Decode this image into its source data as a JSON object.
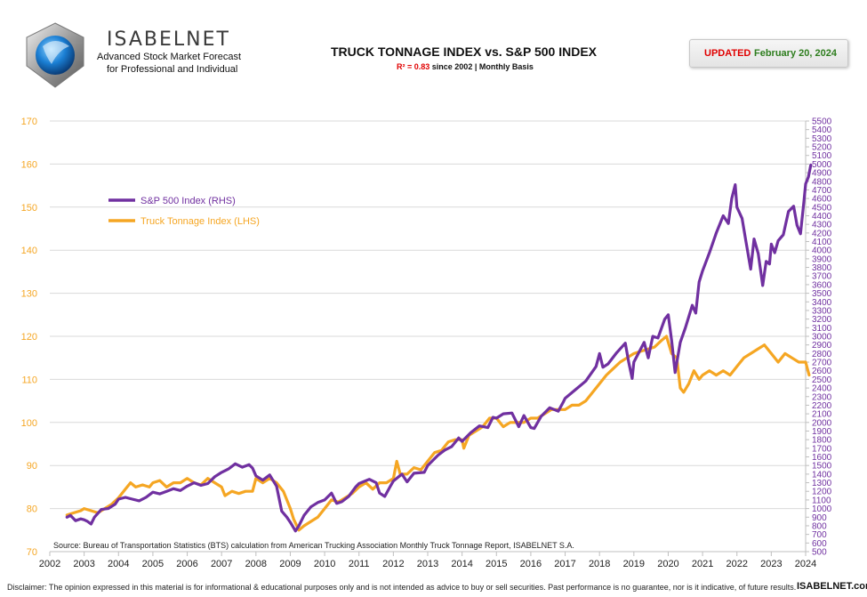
{
  "brand": {
    "name": "ISABELNET",
    "tagline_1": "Advanced Stock Market Forecast",
    "tagline_2": "for Professional and Individual"
  },
  "header": {
    "title": "TRUCK TONNAGE  INDEX vs. S&P 500 INDEX",
    "subtitle_r2": "R² = 0.83",
    "subtitle_rest": " since 2002 | Monthly Basis",
    "updated_label": "UPDATED",
    "updated_date": "February 20, 2024"
  },
  "footer": {
    "disclaimer": "Disclaimer: The opinion expressed in this material is for informational & educational purposes only and is not intended as advice to buy or sell securities. Past performance is no guarantee, nor is it indicative, of future results.",
    "site": "ISABELNET.com"
  },
  "colors": {
    "sp500": "#7030a0",
    "truck": "#f5a623",
    "left_axis_text": "#f5a623",
    "right_axis_text": "#7030a0",
    "grid": "#d9d9d9",
    "axis": "#bfbfbf",
    "accent_red": "#e00000",
    "accent_green": "#2e7d1e"
  },
  "chart_data": {
    "type": "line",
    "source": "Source: Bureau of Transportation Statistics (BTS) calculation from American Trucking Association Monthly Truck Tonnage Report, ISABELNET S.A.",
    "legend_position": "upper-left",
    "grid": "horizontal",
    "x_ticks": [
      2002,
      2003,
      2004,
      2005,
      2006,
      2007,
      2008,
      2009,
      2010,
      2011,
      2012,
      2013,
      2014,
      2015,
      2016,
      2017,
      2018,
      2019,
      2020,
      2021,
      2022,
      2023,
      2024
    ],
    "xlim": [
      2002,
      2024
    ],
    "left_axis": {
      "lim": [
        70,
        170
      ],
      "ticks": [
        70,
        80,
        90,
        100,
        110,
        120,
        130,
        140,
        150,
        160,
        170
      ]
    },
    "right_axis": {
      "lim": [
        500,
        5500
      ],
      "step": 100
    },
    "series": [
      {
        "name": "S&P 500 Index (RHS)",
        "axis": "right",
        "points": [
          [
            2002.5,
            900
          ],
          [
            2002.6,
            920
          ],
          [
            2002.75,
            860
          ],
          [
            2002.9,
            880
          ],
          [
            2003.0,
            870
          ],
          [
            2003.1,
            850
          ],
          [
            2003.2,
            820
          ],
          [
            2003.3,
            900
          ],
          [
            2003.5,
            990
          ],
          [
            2003.7,
            1000
          ],
          [
            2003.9,
            1050
          ],
          [
            2004.0,
            1110
          ],
          [
            2004.2,
            1130
          ],
          [
            2004.4,
            1110
          ],
          [
            2004.6,
            1090
          ],
          [
            2004.8,
            1130
          ],
          [
            2005.0,
            1190
          ],
          [
            2005.2,
            1170
          ],
          [
            2005.4,
            1200
          ],
          [
            2005.6,
            1230
          ],
          [
            2005.8,
            1210
          ],
          [
            2006.0,
            1260
          ],
          [
            2006.2,
            1300
          ],
          [
            2006.4,
            1270
          ],
          [
            2006.6,
            1290
          ],
          [
            2006.8,
            1370
          ],
          [
            2007.0,
            1420
          ],
          [
            2007.2,
            1460
          ],
          [
            2007.4,
            1520
          ],
          [
            2007.6,
            1480
          ],
          [
            2007.8,
            1510
          ],
          [
            2007.9,
            1470
          ],
          [
            2008.0,
            1380
          ],
          [
            2008.2,
            1330
          ],
          [
            2008.4,
            1390
          ],
          [
            2008.6,
            1260
          ],
          [
            2008.75,
            970
          ],
          [
            2008.9,
            900
          ],
          [
            2009.0,
            840
          ],
          [
            2009.15,
            740
          ],
          [
            2009.25,
            800
          ],
          [
            2009.4,
            920
          ],
          [
            2009.6,
            1020
          ],
          [
            2009.8,
            1070
          ],
          [
            2010.0,
            1100
          ],
          [
            2010.2,
            1180
          ],
          [
            2010.35,
            1060
          ],
          [
            2010.5,
            1080
          ],
          [
            2010.7,
            1140
          ],
          [
            2010.9,
            1250
          ],
          [
            2011.0,
            1290
          ],
          [
            2011.3,
            1340
          ],
          [
            2011.5,
            1300
          ],
          [
            2011.6,
            1180
          ],
          [
            2011.75,
            1140
          ],
          [
            2011.9,
            1250
          ],
          [
            2012.0,
            1320
          ],
          [
            2012.25,
            1400
          ],
          [
            2012.4,
            1310
          ],
          [
            2012.6,
            1410
          ],
          [
            2012.9,
            1420
          ],
          [
            2013.0,
            1500
          ],
          [
            2013.3,
            1620
          ],
          [
            2013.5,
            1680
          ],
          [
            2013.7,
            1720
          ],
          [
            2013.9,
            1820
          ],
          [
            2014.0,
            1780
          ],
          [
            2014.25,
            1880
          ],
          [
            2014.5,
            1960
          ],
          [
            2014.75,
            1940
          ],
          [
            2014.9,
            2060
          ],
          [
            2015.0,
            2050
          ],
          [
            2015.2,
            2100
          ],
          [
            2015.45,
            2110
          ],
          [
            2015.65,
            1950
          ],
          [
            2015.8,
            2080
          ],
          [
            2016.0,
            1940
          ],
          [
            2016.1,
            1930
          ],
          [
            2016.3,
            2070
          ],
          [
            2016.55,
            2170
          ],
          [
            2016.8,
            2130
          ],
          [
            2016.95,
            2240
          ],
          [
            2017.0,
            2280
          ],
          [
            2017.3,
            2380
          ],
          [
            2017.6,
            2480
          ],
          [
            2017.9,
            2650
          ],
          [
            2018.0,
            2800
          ],
          [
            2018.1,
            2640
          ],
          [
            2018.25,
            2680
          ],
          [
            2018.5,
            2810
          ],
          [
            2018.75,
            2920
          ],
          [
            2018.85,
            2700
          ],
          [
            2018.95,
            2510
          ],
          [
            2019.0,
            2700
          ],
          [
            2019.3,
            2930
          ],
          [
            2019.42,
            2750
          ],
          [
            2019.55,
            3000
          ],
          [
            2019.7,
            2980
          ],
          [
            2019.9,
            3200
          ],
          [
            2020.0,
            3250
          ],
          [
            2020.1,
            2950
          ],
          [
            2020.2,
            2580
          ],
          [
            2020.35,
            2930
          ],
          [
            2020.5,
            3100
          ],
          [
            2020.7,
            3360
          ],
          [
            2020.8,
            3270
          ],
          [
            2020.9,
            3630
          ],
          [
            2021.0,
            3760
          ],
          [
            2021.2,
            3970
          ],
          [
            2021.4,
            4200
          ],
          [
            2021.6,
            4400
          ],
          [
            2021.75,
            4310
          ],
          [
            2021.85,
            4600
          ],
          [
            2021.95,
            4760
          ],
          [
            2022.0,
            4500
          ],
          [
            2022.15,
            4370
          ],
          [
            2022.25,
            4130
          ],
          [
            2022.4,
            3780
          ],
          [
            2022.5,
            4130
          ],
          [
            2022.62,
            3960
          ],
          [
            2022.75,
            3590
          ],
          [
            2022.85,
            3870
          ],
          [
            2022.95,
            3840
          ],
          [
            2023.0,
            4070
          ],
          [
            2023.1,
            3970
          ],
          [
            2023.2,
            4110
          ],
          [
            2023.35,
            4180
          ],
          [
            2023.5,
            4450
          ],
          [
            2023.65,
            4510
          ],
          [
            2023.75,
            4290
          ],
          [
            2023.85,
            4190
          ],
          [
            2023.95,
            4570
          ],
          [
            2024.0,
            4770
          ],
          [
            2024.08,
            4850
          ],
          [
            2024.15,
            4990
          ]
        ]
      },
      {
        "name": "Truck Tonnage Index (LHS)",
        "axis": "left",
        "points": [
          [
            2002.5,
            78.5
          ],
          [
            2002.7,
            79
          ],
          [
            2002.9,
            79.5
          ],
          [
            2003.0,
            80
          ],
          [
            2003.2,
            79.5
          ],
          [
            2003.4,
            79
          ],
          [
            2003.6,
            80
          ],
          [
            2003.8,
            81
          ],
          [
            2004.0,
            82.5
          ],
          [
            2004.2,
            84.5
          ],
          [
            2004.35,
            86
          ],
          [
            2004.5,
            85
          ],
          [
            2004.7,
            85.5
          ],
          [
            2004.9,
            85
          ],
          [
            2005.0,
            86
          ],
          [
            2005.2,
            86.5
          ],
          [
            2005.4,
            85
          ],
          [
            2005.6,
            86
          ],
          [
            2005.8,
            86
          ],
          [
            2006.0,
            87
          ],
          [
            2006.2,
            86
          ],
          [
            2006.4,
            85.5
          ],
          [
            2006.6,
            87
          ],
          [
            2006.8,
            86
          ],
          [
            2007.0,
            85
          ],
          [
            2007.1,
            83
          ],
          [
            2007.3,
            84
          ],
          [
            2007.5,
            83.5
          ],
          [
            2007.7,
            84
          ],
          [
            2007.9,
            84
          ],
          [
            2008.0,
            87
          ],
          [
            2008.2,
            86
          ],
          [
            2008.4,
            87
          ],
          [
            2008.6,
            86
          ],
          [
            2008.8,
            84
          ],
          [
            2009.0,
            80
          ],
          [
            2009.1,
            77.5
          ],
          [
            2009.25,
            75
          ],
          [
            2009.4,
            76
          ],
          [
            2009.6,
            77
          ],
          [
            2009.8,
            78
          ],
          [
            2010.0,
            80
          ],
          [
            2010.2,
            82
          ],
          [
            2010.4,
            81.5
          ],
          [
            2010.6,
            82.5
          ],
          [
            2010.8,
            83.5
          ],
          [
            2011.0,
            85
          ],
          [
            2011.2,
            86
          ],
          [
            2011.4,
            84.5
          ],
          [
            2011.6,
            86
          ],
          [
            2011.8,
            86
          ],
          [
            2012.0,
            87
          ],
          [
            2012.1,
            91
          ],
          [
            2012.2,
            88
          ],
          [
            2012.4,
            88
          ],
          [
            2012.6,
            89.5
          ],
          [
            2012.8,
            89
          ],
          [
            2013.0,
            91
          ],
          [
            2013.2,
            93
          ],
          [
            2013.4,
            93.5
          ],
          [
            2013.6,
            95.5
          ],
          [
            2013.8,
            96
          ],
          [
            2014.0,
            96
          ],
          [
            2014.05,
            94
          ],
          [
            2014.2,
            97
          ],
          [
            2014.4,
            98
          ],
          [
            2014.6,
            99
          ],
          [
            2014.8,
            101
          ],
          [
            2015.0,
            101
          ],
          [
            2015.2,
            99
          ],
          [
            2015.4,
            100
          ],
          [
            2015.6,
            100
          ],
          [
            2015.8,
            100
          ],
          [
            2016.0,
            101
          ],
          [
            2016.2,
            101
          ],
          [
            2016.4,
            102
          ],
          [
            2016.6,
            103
          ],
          [
            2016.8,
            103
          ],
          [
            2017.0,
            103
          ],
          [
            2017.2,
            104
          ],
          [
            2017.4,
            104
          ],
          [
            2017.6,
            105
          ],
          [
            2017.8,
            107
          ],
          [
            2018.0,
            109
          ],
          [
            2018.2,
            111
          ],
          [
            2018.4,
            112.5
          ],
          [
            2018.6,
            114
          ],
          [
            2018.8,
            115
          ],
          [
            2019.0,
            116
          ],
          [
            2019.2,
            116.5
          ],
          [
            2019.4,
            117
          ],
          [
            2019.6,
            117.5
          ],
          [
            2019.8,
            119
          ],
          [
            2019.95,
            120
          ],
          [
            2020.1,
            116
          ],
          [
            2020.25,
            115
          ],
          [
            2020.35,
            108
          ],
          [
            2020.45,
            107
          ],
          [
            2020.6,
            109
          ],
          [
            2020.75,
            112
          ],
          [
            2020.9,
            110
          ],
          [
            2021.0,
            111
          ],
          [
            2021.2,
            112
          ],
          [
            2021.4,
            111
          ],
          [
            2021.6,
            112
          ],
          [
            2021.8,
            111
          ],
          [
            2022.0,
            113
          ],
          [
            2022.2,
            115
          ],
          [
            2022.4,
            116
          ],
          [
            2022.6,
            117
          ],
          [
            2022.8,
            118
          ],
          [
            2023.0,
            116
          ],
          [
            2023.2,
            114
          ],
          [
            2023.4,
            116
          ],
          [
            2023.6,
            115
          ],
          [
            2023.8,
            114
          ],
          [
            2024.0,
            114
          ],
          [
            2024.1,
            111
          ]
        ]
      }
    ]
  }
}
